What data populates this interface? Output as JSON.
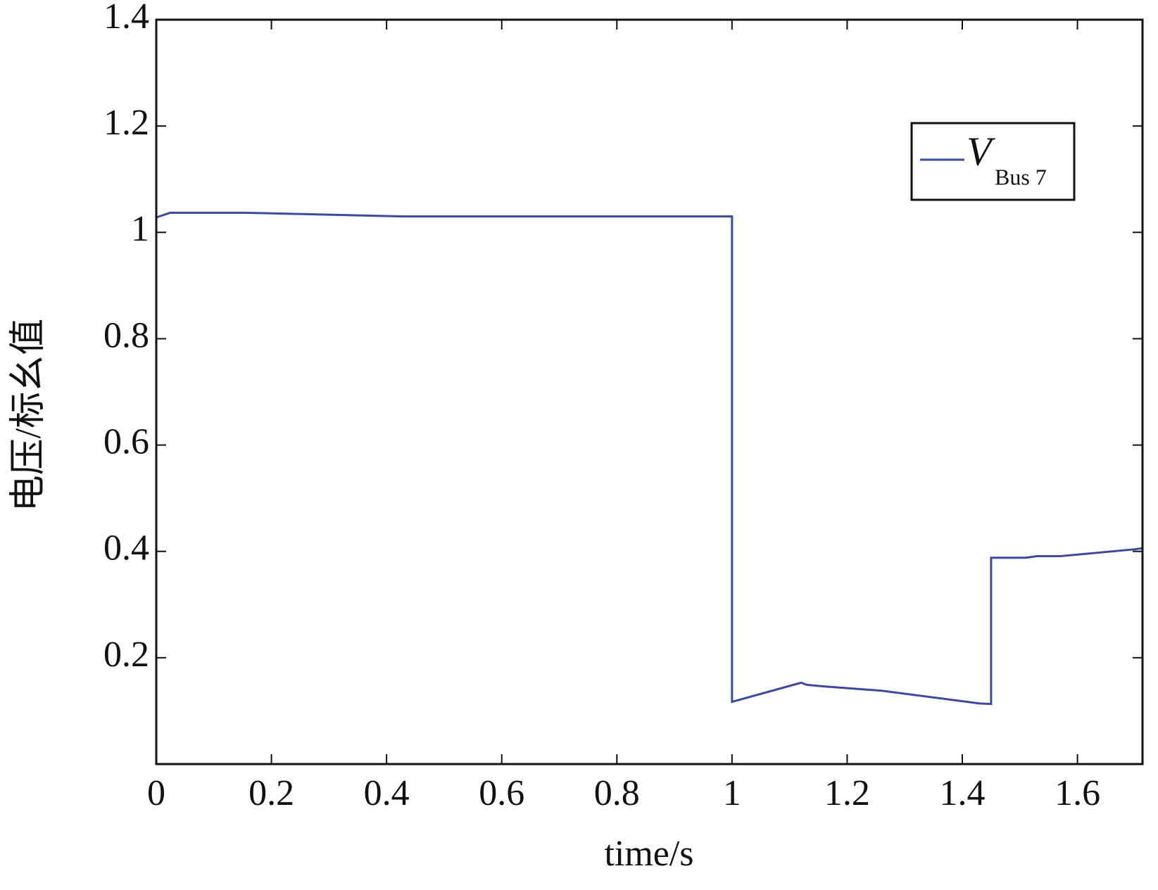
{
  "chart_data": {
    "type": "line",
    "x_label": "time/s",
    "y_label": "电压/标幺值",
    "x": [
      0,
      0.024,
      0.15,
      0.43,
      1.0,
      1.0,
      1.12,
      1.13,
      1.16,
      1.26,
      1.43,
      1.45,
      1.45,
      1.51,
      1.53,
      1.57,
      1.7,
      1.713
    ],
    "series": [
      {
        "name": "V",
        "name_subscript": "Bus 7",
        "color": "#3a4a9c",
        "values": [
          1.028,
          1.037,
          1.037,
          1.03,
          1.03,
          0.117,
          0.153,
          0.149,
          0.146,
          0.138,
          0.114,
          0.113,
          0.388,
          0.388,
          0.391,
          0.391,
          0.404,
          0.406
        ]
      }
    ],
    "xlim": [
      0,
      1.713
    ],
    "ylim": [
      0,
      1.4
    ],
    "xticks": [
      0,
      0.2,
      0.4,
      0.6,
      0.8,
      1,
      1.2,
      1.4,
      1.6
    ],
    "yticks": [
      0.2,
      0.4,
      0.6,
      0.8,
      1,
      1.2,
      1.4
    ],
    "grid": false,
    "legend": "upper right"
  }
}
